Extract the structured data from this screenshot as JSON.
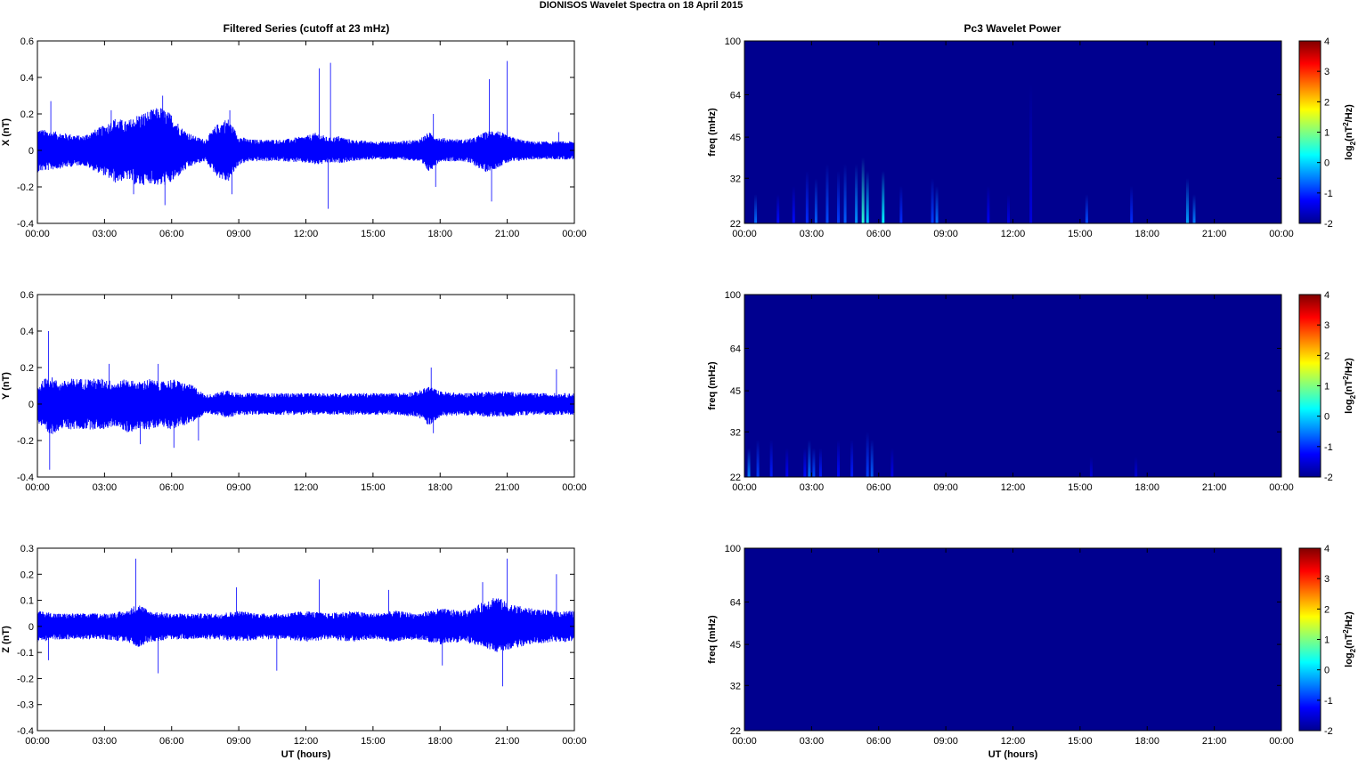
{
  "figure": {
    "title": "DIONISOS Wavelet Spectra on 18 April     2015",
    "left_column_title": "Filtered Series (cutoff at 23 mHz)",
    "right_column_title": "Pc3 Wavelet Power"
  },
  "colors": {
    "trace": "#0000ff",
    "background_power": "#00008f"
  },
  "chart_data": [
    {
      "type": "line",
      "name": "x-series",
      "ylabel": "X (nT)",
      "xlabel": "",
      "ylim": [
        -0.4,
        0.6
      ],
      "yticks": [
        -0.4,
        -0.2,
        0,
        0.2,
        0.4,
        0.6
      ],
      "xlim": [
        0,
        24
      ],
      "xticks": [
        "00:00",
        "03:00",
        "06:00",
        "09:00",
        "12:00",
        "15:00",
        "18:00",
        "21:00",
        "00:00"
      ],
      "envelope": {
        "x": [
          0,
          1,
          2,
          3,
          3.5,
          4,
          4.5,
          5,
          5.5,
          6,
          6.5,
          7,
          7.5,
          8,
          8.5,
          9,
          9.5,
          10,
          11,
          12,
          12.5,
          13,
          13.5,
          14,
          15,
          16,
          17,
          17.5,
          18,
          19,
          19.5,
          20,
          20.5,
          21,
          22,
          23,
          24
        ],
        "upper": [
          0.12,
          0.1,
          0.08,
          0.14,
          0.18,
          0.16,
          0.2,
          0.22,
          0.24,
          0.2,
          0.12,
          0.08,
          0.06,
          0.14,
          0.18,
          0.08,
          0.06,
          0.06,
          0.06,
          0.08,
          0.1,
          0.07,
          0.08,
          0.06,
          0.05,
          0.05,
          0.06,
          0.1,
          0.07,
          0.06,
          0.07,
          0.1,
          0.12,
          0.08,
          0.05,
          0.05,
          0.05
        ],
        "lower": [
          -0.12,
          -0.1,
          -0.08,
          -0.14,
          -0.18,
          -0.16,
          -0.2,
          -0.18,
          -0.2,
          -0.18,
          -0.12,
          -0.08,
          -0.06,
          -0.14,
          -0.18,
          -0.08,
          -0.06,
          -0.06,
          -0.06,
          -0.07,
          -0.08,
          -0.07,
          -0.07,
          -0.06,
          -0.05,
          -0.05,
          -0.06,
          -0.12,
          -0.06,
          -0.06,
          -0.08,
          -0.12,
          -0.1,
          -0.07,
          -0.05,
          -0.05,
          -0.05
        ]
      },
      "spikes": [
        [
          0.6,
          0.27
        ],
        [
          3.3,
          0.22
        ],
        [
          4.3,
          -0.24
        ],
        [
          5.6,
          0.3
        ],
        [
          5.7,
          -0.3
        ],
        [
          8.6,
          0.22
        ],
        [
          8.7,
          -0.24
        ],
        [
          12.6,
          0.45
        ],
        [
          13.0,
          -0.32
        ],
        [
          13.1,
          0.48
        ],
        [
          17.7,
          0.2
        ],
        [
          17.8,
          -0.2
        ],
        [
          20.2,
          0.39
        ],
        [
          20.3,
          -0.28
        ],
        [
          21.0,
          0.49
        ],
        [
          23.3,
          0.1
        ]
      ]
    },
    {
      "type": "heatmap",
      "name": "x-power",
      "ylabel": "freq (mHz)",
      "ylim": [
        22,
        100
      ],
      "yticks": [
        22,
        32,
        45,
        64,
        100
      ],
      "xlim": [
        0,
        24
      ],
      "xticks": [
        "00:00",
        "03:00",
        "06:00",
        "09:00",
        "12:00",
        "15:00",
        "18:00",
        "21:00",
        "00:00"
      ],
      "colorbar": {
        "label_base": "log",
        "label_sub": "2",
        "label_unit": "(nT",
        "label_sup": "2",
        "label_tail": "/Hz)",
        "ticks": [
          -2,
          -1,
          0,
          1,
          2,
          3,
          4
        ],
        "range": [
          -2,
          4
        ]
      },
      "bursts": [
        [
          0.5,
          28,
          -0.6
        ],
        [
          1.5,
          28,
          -1.2
        ],
        [
          2.2,
          30,
          -1.2
        ],
        [
          2.8,
          34,
          -1.0
        ],
        [
          3.2,
          32,
          -0.7
        ],
        [
          3.7,
          36,
          -0.8
        ],
        [
          4.2,
          34,
          -0.9
        ],
        [
          4.5,
          36,
          -0.7
        ],
        [
          5.0,
          36,
          -0.4
        ],
        [
          5.3,
          38,
          0.5
        ],
        [
          5.5,
          34,
          0.0
        ],
        [
          6.2,
          34,
          0.2
        ],
        [
          7.0,
          30,
          -1.0
        ],
        [
          8.4,
          32,
          -0.9
        ],
        [
          8.6,
          30,
          -0.6
        ],
        [
          10.9,
          30,
          -1.3
        ],
        [
          11.8,
          28,
          -1.4
        ],
        [
          12.8,
          70,
          -1.5
        ],
        [
          15.3,
          28,
          -0.8
        ],
        [
          17.3,
          30,
          -1.0
        ],
        [
          19.8,
          32,
          -0.3
        ],
        [
          20.1,
          28,
          -0.5
        ]
      ]
    },
    {
      "type": "line",
      "name": "y-series",
      "ylabel": "Y (nT)",
      "xlabel": "",
      "ylim": [
        -0.4,
        0.6
      ],
      "yticks": [
        -0.4,
        -0.2,
        0,
        0.2,
        0.4,
        0.6
      ],
      "xlim": [
        0,
        24
      ],
      "xticks": [
        "00:00",
        "03:00",
        "06:00",
        "09:00",
        "12:00",
        "15:00",
        "18:00",
        "21:00",
        "00:00"
      ],
      "envelope": {
        "x": [
          0,
          0.5,
          1,
          1.5,
          2,
          2.5,
          3,
          3.5,
          4,
          4.5,
          5,
          5.5,
          6,
          6.5,
          7,
          7.5,
          8,
          8.5,
          9,
          10,
          11,
          12,
          13,
          14,
          15,
          16,
          17,
          17.5,
          18,
          19,
          20,
          21,
          22,
          23,
          24
        ],
        "upper": [
          0.1,
          0.16,
          0.12,
          0.14,
          0.14,
          0.14,
          0.14,
          0.12,
          0.14,
          0.12,
          0.14,
          0.12,
          0.14,
          0.12,
          0.1,
          0.05,
          0.06,
          0.08,
          0.06,
          0.06,
          0.06,
          0.06,
          0.06,
          0.06,
          0.06,
          0.06,
          0.07,
          0.1,
          0.07,
          0.06,
          0.07,
          0.07,
          0.06,
          0.06,
          0.06
        ],
        "lower": [
          -0.1,
          -0.18,
          -0.14,
          -0.14,
          -0.14,
          -0.14,
          -0.14,
          -0.12,
          -0.16,
          -0.14,
          -0.14,
          -0.12,
          -0.14,
          -0.12,
          -0.1,
          -0.05,
          -0.06,
          -0.08,
          -0.06,
          -0.06,
          -0.06,
          -0.06,
          -0.06,
          -0.06,
          -0.06,
          -0.06,
          -0.07,
          -0.12,
          -0.07,
          -0.06,
          -0.07,
          -0.07,
          -0.06,
          -0.06,
          -0.06
        ]
      },
      "spikes": [
        [
          0.5,
          0.4
        ],
        [
          0.55,
          -0.36
        ],
        [
          3.2,
          0.22
        ],
        [
          4.6,
          -0.22
        ],
        [
          5.4,
          0.22
        ],
        [
          6.1,
          -0.24
        ],
        [
          7.2,
          -0.2
        ],
        [
          17.6,
          0.2
        ],
        [
          17.7,
          -0.16
        ],
        [
          23.2,
          0.19
        ]
      ]
    },
    {
      "type": "heatmap",
      "name": "y-power",
      "ylabel": "freq (mHz)",
      "ylim": [
        22,
        100
      ],
      "yticks": [
        22,
        32,
        45,
        64,
        100
      ],
      "xlim": [
        0,
        24
      ],
      "xticks": [
        "00:00",
        "03:00",
        "06:00",
        "09:00",
        "12:00",
        "15:00",
        "18:00",
        "21:00",
        "00:00"
      ],
      "colorbar": {
        "label_base": "log",
        "label_sub": "2",
        "label_unit": "(nT",
        "label_sup": "2",
        "label_tail": "/Hz)",
        "ticks": [
          -2,
          -1,
          0,
          1,
          2,
          3,
          4
        ],
        "range": [
          -2,
          4
        ]
      },
      "bursts": [
        [
          0.2,
          28,
          -0.5
        ],
        [
          0.6,
          30,
          -0.9
        ],
        [
          1.2,
          30,
          -1.1
        ],
        [
          1.9,
          28,
          -1.3
        ],
        [
          2.7,
          28,
          -1.2
        ],
        [
          2.9,
          30,
          -0.6
        ],
        [
          3.1,
          28,
          -0.8
        ],
        [
          3.4,
          28,
          -1.1
        ],
        [
          4.2,
          30,
          -1.2
        ],
        [
          4.8,
          30,
          -1.1
        ],
        [
          5.5,
          32,
          -0.9
        ],
        [
          5.7,
          30,
          -0.7
        ],
        [
          6.6,
          28,
          -1.4
        ],
        [
          15.5,
          26,
          -1.5
        ],
        [
          17.5,
          26,
          -1.5
        ]
      ]
    },
    {
      "type": "line",
      "name": "z-series",
      "ylabel": "Z (nT)",
      "xlabel": "UT (hours)",
      "ylim": [
        -0.4,
        0.3
      ],
      "yticks": [
        -0.4,
        -0.3,
        -0.2,
        -0.1,
        0,
        0.1,
        0.2,
        0.3
      ],
      "xlim": [
        0,
        24
      ],
      "xticks": [
        "00:00",
        "03:00",
        "06:00",
        "09:00",
        "12:00",
        "15:00",
        "18:00",
        "21:00",
        "00:00"
      ],
      "envelope": {
        "x": [
          0,
          1,
          2,
          3,
          4,
          4.5,
          5,
          6,
          7,
          8,
          9,
          10,
          11,
          12,
          13,
          14,
          15,
          16,
          17,
          18,
          19,
          19.5,
          20,
          20.5,
          21,
          22,
          23,
          24
        ],
        "upper": [
          0.06,
          0.05,
          0.05,
          0.05,
          0.06,
          0.09,
          0.06,
          0.05,
          0.05,
          0.05,
          0.06,
          0.05,
          0.05,
          0.06,
          0.05,
          0.06,
          0.05,
          0.06,
          0.05,
          0.07,
          0.06,
          0.07,
          0.1,
          0.12,
          0.09,
          0.07,
          0.06,
          0.06
        ],
        "lower": [
          -0.06,
          -0.05,
          -0.05,
          -0.05,
          -0.06,
          -0.08,
          -0.06,
          -0.05,
          -0.05,
          -0.05,
          -0.06,
          -0.05,
          -0.05,
          -0.06,
          -0.05,
          -0.06,
          -0.05,
          -0.06,
          -0.05,
          -0.07,
          -0.06,
          -0.07,
          -0.08,
          -0.1,
          -0.09,
          -0.07,
          -0.06,
          -0.06
        ]
      },
      "spikes": [
        [
          0.5,
          -0.13
        ],
        [
          4.4,
          0.26
        ],
        [
          5.4,
          -0.18
        ],
        [
          8.9,
          0.15
        ],
        [
          10.7,
          -0.17
        ],
        [
          12.6,
          0.18
        ],
        [
          15.7,
          0.14
        ],
        [
          18.1,
          -0.15
        ],
        [
          19.9,
          0.17
        ],
        [
          20.8,
          -0.23
        ],
        [
          21.0,
          0.26
        ],
        [
          23.2,
          0.2
        ]
      ]
    },
    {
      "type": "heatmap",
      "name": "z-power",
      "ylabel": "freq (mHz)",
      "xlabel": "UT (hours)",
      "ylim": [
        22,
        100
      ],
      "yticks": [
        22,
        32,
        45,
        64,
        100
      ],
      "xlim": [
        0,
        24
      ],
      "xticks": [
        "00:00",
        "03:00",
        "06:00",
        "09:00",
        "12:00",
        "15:00",
        "18:00",
        "21:00",
        "00:00"
      ],
      "colorbar": {
        "label_base": "log",
        "label_sub": "2",
        "label_unit": "(nT",
        "label_sup": "2",
        "label_tail": "/Hz)",
        "ticks": [
          -2,
          -1,
          0,
          1,
          2,
          3,
          4
        ],
        "range": [
          -2,
          4
        ]
      },
      "bursts": []
    }
  ]
}
